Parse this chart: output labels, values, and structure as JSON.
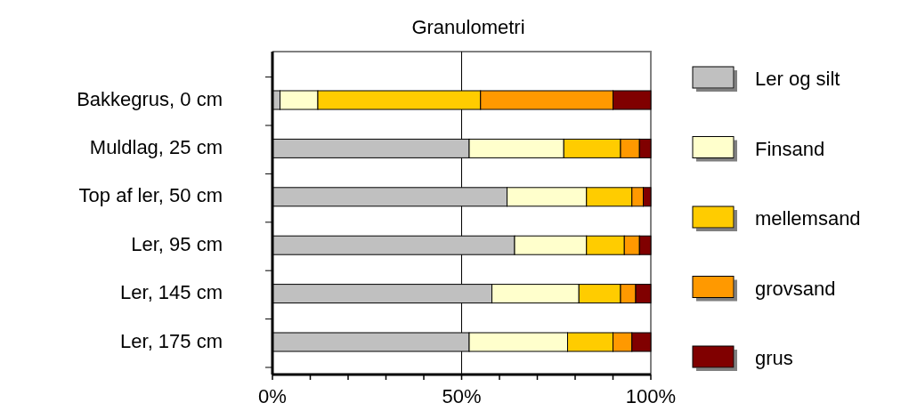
{
  "chart_data": {
    "type": "bar",
    "orientation": "horizontal",
    "stacked": true,
    "title": "Granulometri",
    "categories": [
      "Bakkegrus, 0 cm",
      "Muldlag, 25 cm",
      "Top af ler, 50 cm",
      "Ler, 95 cm",
      "Ler, 145 cm",
      "Ler, 175 cm"
    ],
    "series": [
      {
        "name": "Ler og silt",
        "color": "#c0c0c0",
        "values": [
          2,
          52,
          62,
          64,
          58,
          52
        ]
      },
      {
        "name": "Finsand",
        "color": "#ffffcc",
        "values": [
          10,
          25,
          21,
          19,
          23,
          26
        ]
      },
      {
        "name": "mellemsand",
        "color": "#ffcc00",
        "values": [
          43,
          15,
          12,
          10,
          11,
          12
        ]
      },
      {
        "name": "grovsand",
        "color": "#ff9900",
        "values": [
          35,
          5,
          3,
          4,
          4,
          5
        ]
      },
      {
        "name": "grus",
        "color": "#800000",
        "values": [
          10,
          3,
          2,
          3,
          4,
          5
        ]
      }
    ],
    "xlim": [
      0,
      100
    ],
    "xticks": [
      {
        "value": 0,
        "label": "0%"
      },
      {
        "value": 10,
        "label": null
      },
      {
        "value": 20,
        "label": null
      },
      {
        "value": 30,
        "label": null
      },
      {
        "value": 40,
        "label": null
      },
      {
        "value": 50,
        "label": "50%"
      },
      {
        "value": 60,
        "label": null
      },
      {
        "value": 70,
        "label": null
      },
      {
        "value": 80,
        "label": null
      },
      {
        "value": 90,
        "label": null
      },
      {
        "value": 100,
        "label": "100%"
      }
    ],
    "grid": "x",
    "legend": "right"
  }
}
